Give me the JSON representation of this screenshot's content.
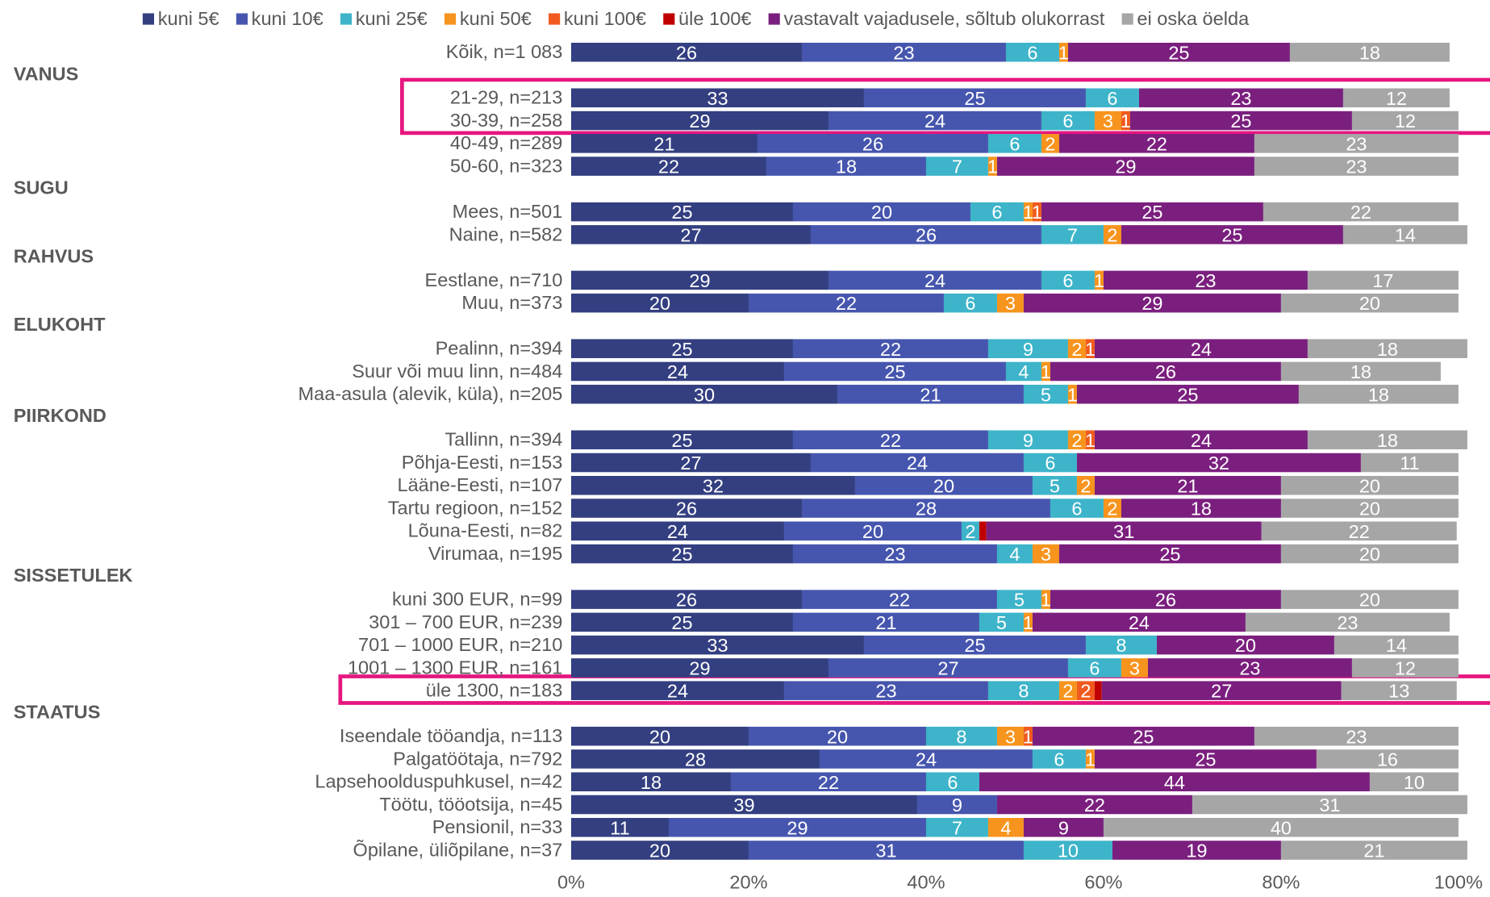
{
  "chart_data": {
    "type": "stacked_bar_horizontal",
    "groups": [
      {
        "name": null,
        "categories": [
          "Kõik, n=1 083"
        ]
      },
      {
        "name": "VANUS",
        "categories": [
          "21-29, n=213",
          "30-39, n=258",
          "40-49, n=289",
          "50-60, n=323"
        ]
      },
      {
        "name": "SUGU",
        "categories": [
          "Mees, n=501",
          "Naine, n=582"
        ]
      },
      {
        "name": "RAHVUS",
        "categories": [
          "Eestlane, n=710",
          "Muu, n=373"
        ]
      },
      {
        "name": "ELUKOHT",
        "categories": [
          "Pealinn, n=394",
          "Suur või muu linn, n=484",
          "Maa-asula (alevik, küla), n=205"
        ]
      },
      {
        "name": "PIIRKOND",
        "categories": [
          "Tallinn, n=394",
          "Põhja-Eesti, n=153",
          "Lääne-Eesti, n=107",
          "Tartu regioon, n=152",
          "Lõuna-Eesti, n=82",
          "Virumaa, n=195"
        ]
      },
      {
        "name": "SISSETULEK",
        "categories": [
          "kuni 300 EUR, n=99",
          "301 – 700 EUR, n=239",
          "701 – 1000 EUR, n=210",
          "1001 – 1300 EUR, n=161",
          "üle 1300, n=183"
        ]
      },
      {
        "name": "STAATUS",
        "categories": [
          "Iseendale tööandja, n=113",
          "Palgatöötaja, n=792",
          "Lapsehoolduspuhkusel, n=42",
          "Töötu, tööotsija, n=45",
          "Pensionil, n=33",
          "Õpilane, üliõpilane, n=37"
        ]
      }
    ],
    "series": [
      {
        "name": "kuni 5€",
        "color": "#333f80",
        "values": [
          26,
          33,
          29,
          21,
          22,
          25,
          27,
          29,
          20,
          25,
          24,
          30,
          25,
          27,
          32,
          26,
          24,
          25,
          26,
          25,
          33,
          29,
          24,
          20,
          28,
          18,
          39,
          11,
          20
        ]
      },
      {
        "name": "kuni 10€",
        "color": "#4656ae",
        "values": [
          23,
          25,
          24,
          26,
          18,
          20,
          26,
          24,
          22,
          22,
          25,
          21,
          22,
          24,
          20,
          28,
          20,
          23,
          22,
          21,
          25,
          27,
          23,
          20,
          24,
          22,
          9,
          29,
          31
        ]
      },
      {
        "name": "kuni 25€",
        "color": "#3db4c9",
        "values": [
          6,
          6,
          6,
          6,
          7,
          6,
          7,
          6,
          6,
          9,
          4,
          5,
          9,
          6,
          5,
          6,
          2,
          4,
          5,
          5,
          8,
          6,
          8,
          8,
          6,
          6,
          0,
          7,
          10
        ]
      },
      {
        "name": "kuni 50€",
        "color": "#f7941d",
        "values": [
          1,
          0,
          3,
          2,
          1,
          1,
          2,
          1,
          3,
          2,
          1,
          1,
          2,
          0,
          2,
          2,
          0,
          3,
          1,
          1,
          0,
          3,
          2,
          3,
          1,
          0,
          0,
          4,
          0
        ]
      },
      {
        "name": "kuni 100€",
        "color": "#f05a1e",
        "values": [
          0,
          0,
          1,
          0,
          0,
          1,
          0,
          0,
          0,
          1,
          0,
          0,
          1,
          0,
          0,
          0,
          0,
          0,
          0,
          0,
          0,
          0,
          2,
          1,
          0,
          0,
          0,
          0,
          0
        ]
      },
      {
        "name": "üle 100€",
        "color": "#c00000",
        "values": [
          0,
          0,
          0,
          0,
          0,
          0,
          0,
          0,
          0,
          0,
          0,
          0,
          0,
          0,
          0,
          0,
          0.8,
          0,
          0,
          0,
          0,
          0,
          0.8,
          0,
          0,
          0,
          0,
          0,
          0
        ]
      },
      {
        "name": "vastavalt vajadusele, sõltub olukorrast",
        "color": "#7b1f7f",
        "values": [
          25,
          23,
          25,
          22,
          29,
          25,
          25,
          23,
          29,
          24,
          26,
          25,
          24,
          32,
          21,
          18,
          31,
          25,
          26,
          24,
          20,
          23,
          27,
          25,
          25,
          44,
          22,
          9,
          19
        ]
      },
      {
        "name": "ei oska öelda",
        "color": "#a6a6a6",
        "values": [
          18,
          12,
          12,
          23,
          23,
          22,
          14,
          17,
          20,
          18,
          18,
          18,
          18,
          11,
          20,
          20,
          22,
          20,
          20,
          23,
          14,
          12,
          13,
          23,
          16,
          10,
          31,
          40,
          21
        ]
      }
    ],
    "xlim": [
      0,
      100
    ],
    "xticks": [
      {
        "value": 0,
        "label": "0%"
      },
      {
        "value": 20,
        "label": "20%"
      },
      {
        "value": 40,
        "label": "40%"
      },
      {
        "value": 60,
        "label": "60%"
      },
      {
        "value": 80,
        "label": "80%"
      },
      {
        "value": 100,
        "label": "100%"
      }
    ],
    "legend": "top"
  }
}
